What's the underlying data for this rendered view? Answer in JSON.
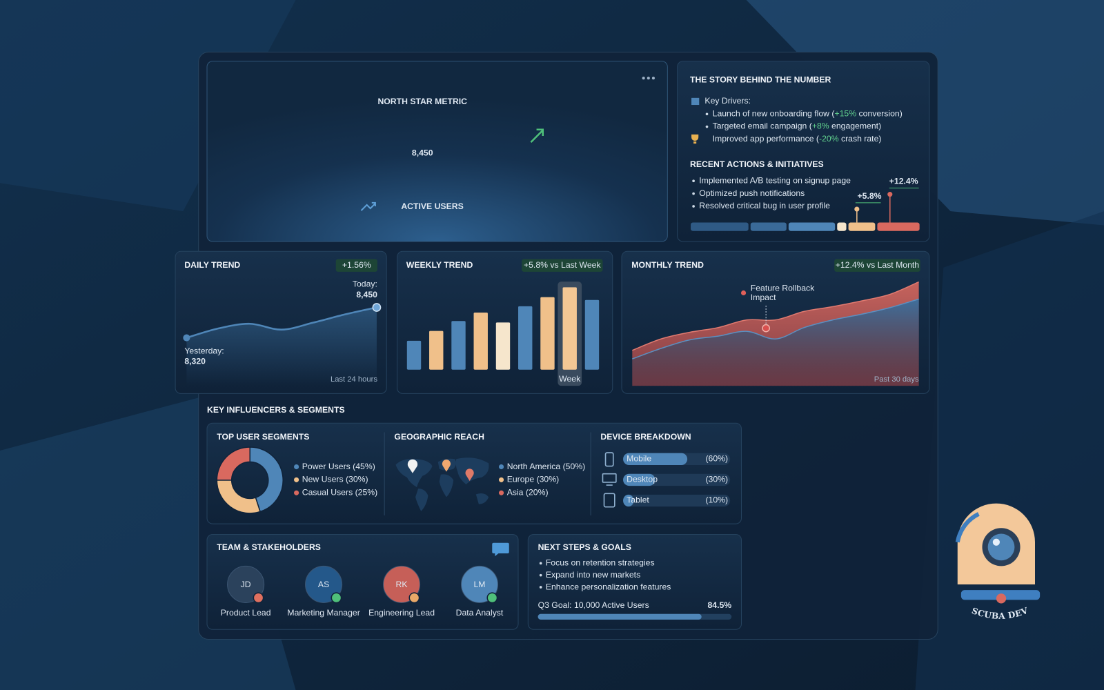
{
  "north_star": {
    "title": "NORTH STAR METRIC",
    "value": "8,450",
    "label": "ACTIVE USERS"
  },
  "story": {
    "title": "THE STORY BEHIND THE NUMBER",
    "drivers_title": "Key Drivers:",
    "drivers": [
      [
        "Launch of new onboarding flow (",
        "+15%",
        " conversion)"
      ],
      [
        "Targeted email campaign (",
        "+8%",
        " engagement)"
      ],
      [
        "Improved app performance (",
        "-20%",
        " crash rate)"
      ]
    ],
    "actions_title": "RECENT ACTIONS & INITIATIVES",
    "actions": [
      "Implemented A/B testing on signup page",
      "Optimized push notifications",
      "Resolved critical bug in user profile"
    ],
    "impacts": [
      "+5.8%",
      "+12.4%"
    ]
  },
  "daily": {
    "title": "DAILY TREND",
    "badge": "+1.56%",
    "today_label": "Today:",
    "today": "8,450",
    "yesterday_label": "Yesterday:",
    "yesterday": "8,320",
    "footer": "Last 24 hours",
    "values": [
      8320,
      8360,
      8380,
      8355,
      8385,
      8420,
      8450
    ],
    "ylim": [
      8250,
      8500
    ]
  },
  "weekly": {
    "title": "WEEKLY TREND",
    "badge": "+5.8% vs Last Week",
    "categories": [
      null,
      null,
      null,
      null,
      null,
      null,
      null,
      "Week",
      null
    ],
    "values": [
      41,
      55,
      69,
      81,
      67,
      90,
      103,
      117,
      99
    ],
    "colors": [
      "#4f86b8",
      "#f0c08a",
      "#4f86b8",
      "#f0c08a",
      "#f6e6cc",
      "#4f86b8",
      "#f0c08a",
      "#f3c794",
      "#4f86b8"
    ],
    "ylim": [
      0,
      130
    ]
  },
  "monthly": {
    "title": "MONTHLY TREND",
    "badge": "+12.4% vs Last Month",
    "annotation": [
      "Feature Rollback",
      "Impact"
    ],
    "annotation_x": 14,
    "footer": "Past 30 days",
    "x": [
      0,
      3,
      6,
      9,
      12,
      15,
      18,
      21,
      24,
      27,
      30
    ],
    "upper": [
      24,
      36,
      43,
      48,
      56,
      56,
      65,
      70,
      76,
      83,
      96
    ],
    "lower": [
      15,
      26,
      35,
      39,
      44,
      36,
      48,
      56,
      62,
      69,
      78
    ],
    "xlim": [
      0,
      30
    ],
    "ylim": [
      0,
      100
    ]
  },
  "influencers": {
    "title": "KEY INFLUENCERS & SEGMENTS",
    "segments": {
      "title": "TOP USER SEGMENTS",
      "items": [
        {
          "name": "Power Users (45%)",
          "value": 45,
          "color": "#4f86b8"
        },
        {
          "name": "New Users (30%)",
          "value": 30,
          "color": "#f0c08a"
        },
        {
          "name": "Casual Users (25%)",
          "value": 25,
          "color": "#d9695f"
        }
      ]
    },
    "geo": {
      "title": "GEOGRAPHIC REACH",
      "items": [
        {
          "name": "North America (50%)",
          "color": "#4f86b8"
        },
        {
          "name": "Europe (30%)",
          "color": "#f0c08a"
        },
        {
          "name": "Asia (20%)",
          "color": "#d9695f"
        }
      ]
    },
    "devices": {
      "title": "DEVICE BREAKDOWN",
      "items": [
        {
          "name": "Mobile",
          "value": 60,
          "value_label": "(60%)"
        },
        {
          "name": "Desktop",
          "value": 30,
          "value_label": "(30%)"
        },
        {
          "name": "Tablet",
          "value": 10,
          "value_label": "(10%)"
        }
      ]
    }
  },
  "team": {
    "title": "TEAM & STAKEHOLDERS",
    "members": [
      {
        "initials": "JD",
        "role": "Product Lead",
        "color": "#2b425c",
        "status": "#e0705f"
      },
      {
        "initials": "AS",
        "role": "Marketing Manager",
        "color": "#24588a",
        "status": "#4fc07a"
      },
      {
        "initials": "RK",
        "role": "Engineering Lead",
        "color": "#c65f58",
        "status": "#e8a868"
      },
      {
        "initials": "LM",
        "role": "Data Analyst",
        "color": "#4f86b8",
        "status": "#4fc07a"
      }
    ]
  },
  "next_steps": {
    "title": "NEXT STEPS & GOALS",
    "items": [
      "Focus on retention strategies",
      "Expand into new markets",
      "Enhance personalization features"
    ],
    "goal_label": "Q3 Goal: 10,000 Active Users",
    "progress": 84.5,
    "progress_label": "84.5%"
  },
  "brand": "SCUBA DEV"
}
